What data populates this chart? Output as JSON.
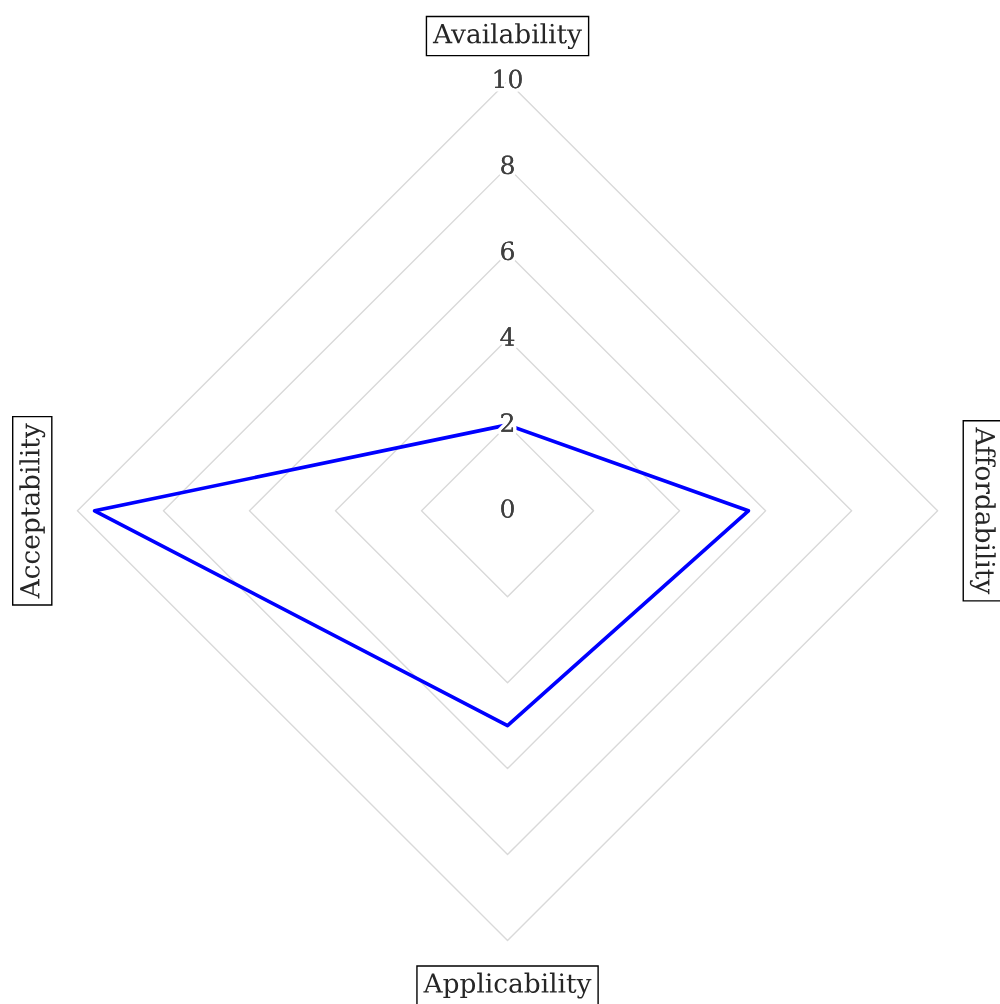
{
  "chart_data": {
    "type": "radar",
    "categories": [
      "Availability",
      "Affordability",
      "Applicability",
      "Acceptability"
    ],
    "series": [
      {
        "color": "#0000ff",
        "values": [
          2,
          5.6,
          5,
          9.6
        ]
      }
    ],
    "ylim": [
      0,
      10
    ],
    "yticks": [
      0,
      2,
      4,
      6,
      8,
      10
    ],
    "grid": true
  }
}
